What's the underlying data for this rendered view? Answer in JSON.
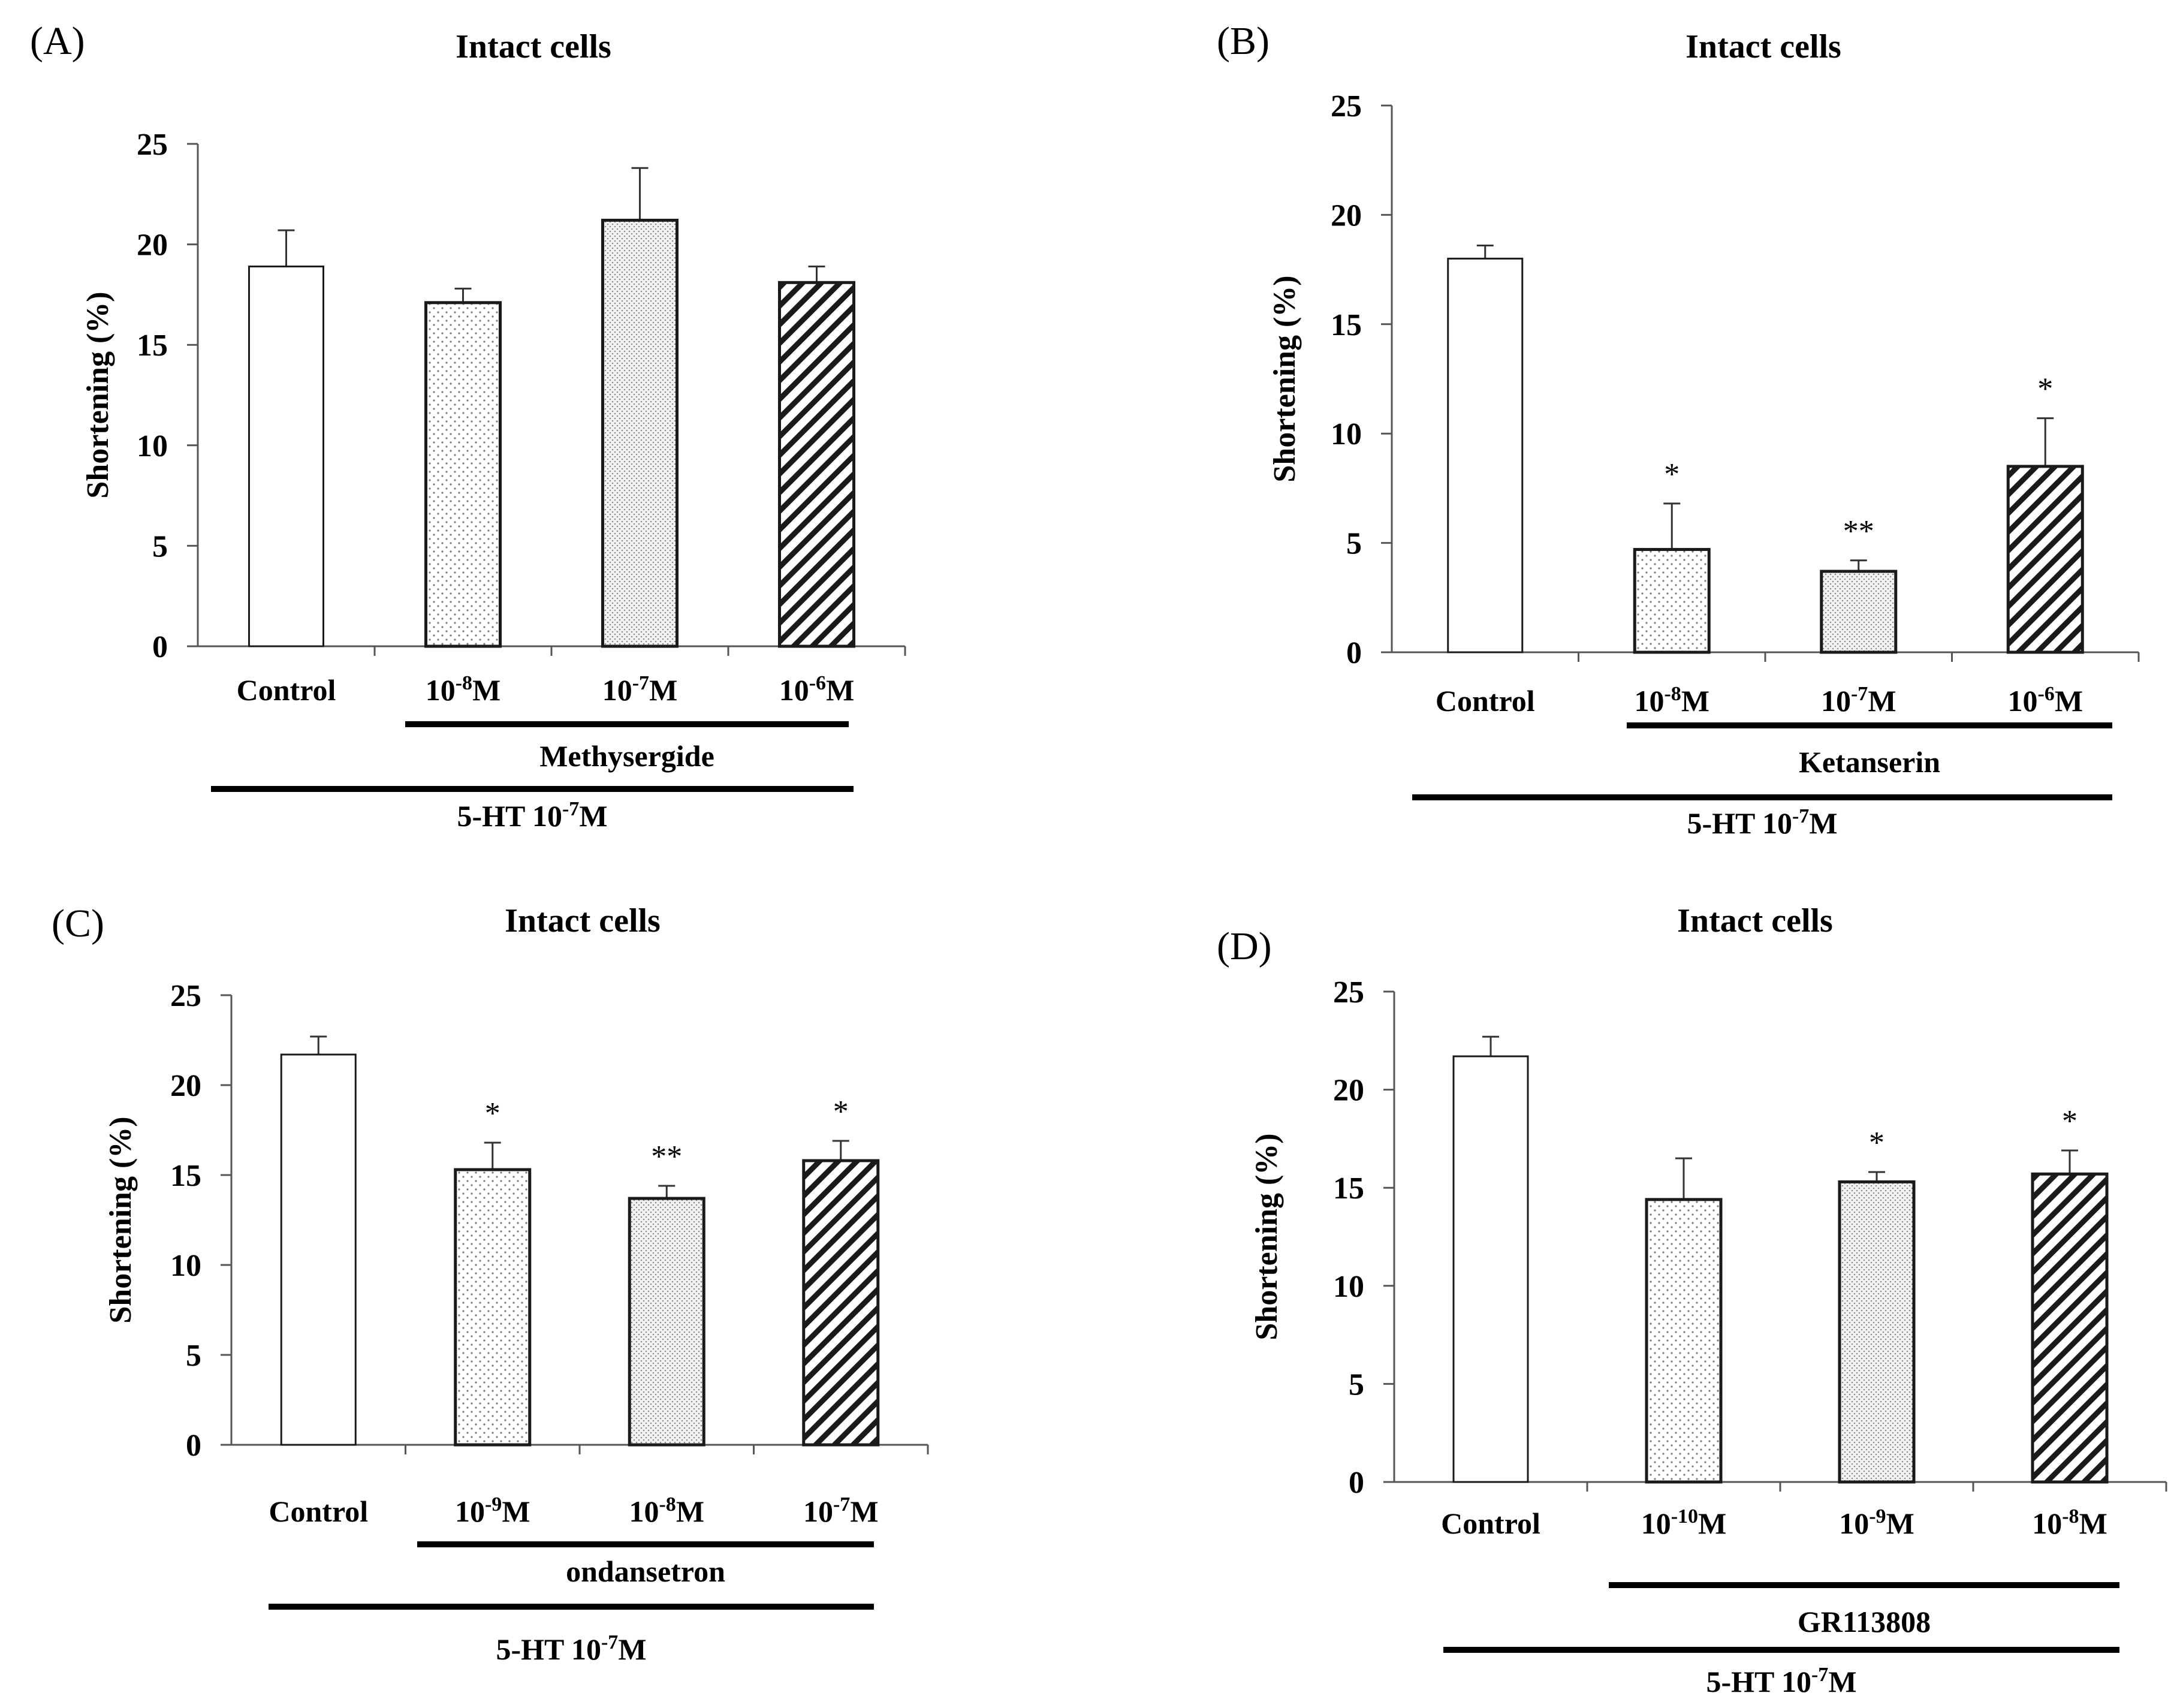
{
  "chart_data": [
    {
      "type": "bar",
      "panel_label": "(A)",
      "title": "Intact cells",
      "ylabel": "Shortening (%)",
      "ylim": [
        0,
        25
      ],
      "yticks": [
        "0",
        "5",
        "10",
        "15",
        "20",
        "25"
      ],
      "categories": [
        {
          "base": "Control",
          "sup": "",
          "tail": ""
        },
        {
          "base": "10",
          "sup": "-8",
          "tail": "M"
        },
        {
          "base": "10",
          "sup": "-7",
          "tail": "M"
        },
        {
          "base": "10",
          "sup": "-6",
          "tail": "M"
        }
      ],
      "values": [
        18.9,
        17.1,
        21.2,
        18.1
      ],
      "errors": [
        1.8,
        0.7,
        2.6,
        0.8
      ],
      "patterns": [
        "white",
        "dots",
        "fine",
        "hatch"
      ],
      "significance": [
        "",
        "",
        "",
        ""
      ],
      "group_inner": {
        "base": "Methysergide",
        "sup": "",
        "tail": ""
      },
      "group_outer": {
        "base": "5-HT 10",
        "sup": "-7",
        "tail": "M"
      }
    },
    {
      "type": "bar",
      "panel_label": "(B)",
      "title": "Intact cells",
      "ylabel": "Shortening (%)",
      "ylim": [
        0,
        25
      ],
      "yticks": [
        "0",
        "5",
        "10",
        "15",
        "20",
        "25"
      ],
      "categories": [
        {
          "base": "Control",
          "sup": "",
          "tail": ""
        },
        {
          "base": "10",
          "sup": "-8",
          "tail": "M"
        },
        {
          "base": "10",
          "sup": "-7",
          "tail": "M"
        },
        {
          "base": "10",
          "sup": "-6",
          "tail": "M"
        }
      ],
      "values": [
        18.0,
        4.7,
        3.7,
        8.5
      ],
      "errors": [
        0.6,
        2.1,
        0.5,
        2.2
      ],
      "patterns": [
        "white",
        "dots",
        "fine",
        "hatch"
      ],
      "significance": [
        "",
        "*",
        "**",
        "*"
      ],
      "group_inner": {
        "base": "Ketanserin",
        "sup": "",
        "tail": ""
      },
      "group_outer": {
        "base": "5-HT 10",
        "sup": "-7",
        "tail": "M"
      }
    },
    {
      "type": "bar",
      "panel_label": "(C)",
      "title": "Intact cells",
      "ylabel": "Shortening (%)",
      "ylim": [
        0,
        25
      ],
      "yticks": [
        "0",
        "5",
        "10",
        "15",
        "20",
        "25"
      ],
      "categories": [
        {
          "base": "Control",
          "sup": "",
          "tail": ""
        },
        {
          "base": "10",
          "sup": "-9",
          "tail": "M"
        },
        {
          "base": "10",
          "sup": "-8",
          "tail": "M"
        },
        {
          "base": "10",
          "sup": "-7",
          "tail": "M"
        }
      ],
      "values": [
        21.7,
        15.3,
        13.7,
        15.8
      ],
      "errors": [
        1.0,
        1.5,
        0.7,
        1.1
      ],
      "patterns": [
        "white",
        "dots",
        "fine",
        "hatch"
      ],
      "significance": [
        "",
        "*",
        "**",
        "*"
      ],
      "group_inner": {
        "base": "ondansetron",
        "sup": "",
        "tail": ""
      },
      "group_outer": {
        "base": "5-HT 10",
        "sup": "-7",
        "tail": "M"
      }
    },
    {
      "type": "bar",
      "panel_label": "(D)",
      "title": "Intact cells",
      "ylabel": "Shortening (%)",
      "ylim": [
        0,
        25
      ],
      "yticks": [
        "0",
        "5",
        "10",
        "15",
        "20",
        "25"
      ],
      "categories": [
        {
          "base": "Control",
          "sup": "",
          "tail": ""
        },
        {
          "base": "10",
          "sup": "-10",
          "tail": "M"
        },
        {
          "base": "10",
          "sup": "-9",
          "tail": "M"
        },
        {
          "base": "10",
          "sup": "-8",
          "tail": "M"
        }
      ],
      "values": [
        21.7,
        14.4,
        15.3,
        15.7
      ],
      "errors": [
        1.0,
        2.1,
        0.5,
        1.2
      ],
      "patterns": [
        "white",
        "dots",
        "fine",
        "hatch"
      ],
      "significance": [
        "",
        "",
        "*",
        "*"
      ],
      "group_inner": {
        "base": "GR113808",
        "sup": "",
        "tail": ""
      },
      "group_outer": {
        "base": "5-HT 10",
        "sup": "-7",
        "tail": "M"
      }
    }
  ]
}
